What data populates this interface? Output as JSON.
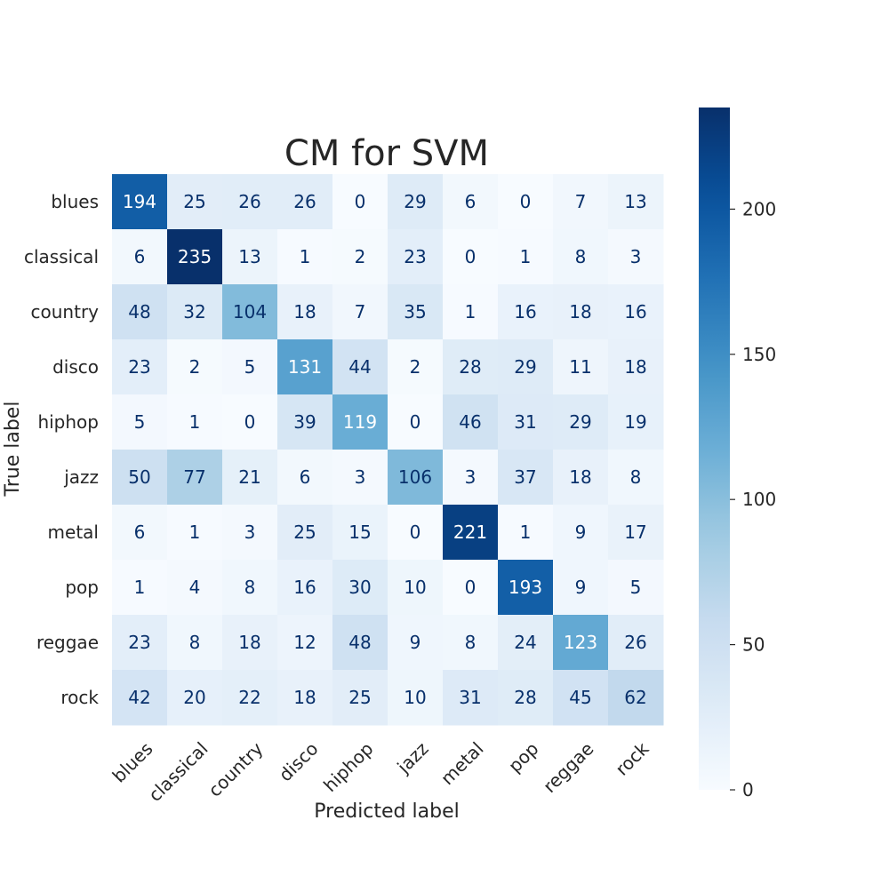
{
  "chart_data": {
    "type": "heatmap",
    "title": "CM for SVM",
    "xlabel": "Predicted label",
    "ylabel": "True label",
    "x_categories": [
      "blues",
      "classical",
      "country",
      "disco",
      "hiphop",
      "jazz",
      "metal",
      "pop",
      "reggae",
      "rock"
    ],
    "y_categories": [
      "blues",
      "classical",
      "country",
      "disco",
      "hiphop",
      "jazz",
      "metal",
      "pop",
      "reggae",
      "rock"
    ],
    "values": [
      [
        194,
        25,
        26,
        26,
        0,
        29,
        6,
        0,
        7,
        13
      ],
      [
        6,
        235,
        13,
        1,
        2,
        23,
        0,
        1,
        8,
        3
      ],
      [
        48,
        32,
        104,
        18,
        7,
        35,
        1,
        16,
        18,
        16
      ],
      [
        23,
        2,
        5,
        131,
        44,
        2,
        28,
        29,
        11,
        18
      ],
      [
        5,
        1,
        0,
        39,
        119,
        0,
        46,
        31,
        29,
        19
      ],
      [
        50,
        77,
        21,
        6,
        3,
        106,
        3,
        37,
        18,
        8
      ],
      [
        6,
        1,
        3,
        25,
        15,
        0,
        221,
        1,
        9,
        17
      ],
      [
        1,
        4,
        8,
        16,
        30,
        10,
        0,
        193,
        9,
        5
      ],
      [
        23,
        8,
        18,
        12,
        48,
        9,
        8,
        24,
        123,
        26
      ],
      [
        42,
        20,
        22,
        18,
        25,
        10,
        31,
        28,
        45,
        62
      ]
    ],
    "colormap": "Blues",
    "colors": {
      "low": "#f7fbff",
      "high": "#08306b",
      "text_dark": "#08306b",
      "text_light": "#ffffff",
      "label": "#262626"
    },
    "colorbar": {
      "range": [
        0,
        235
      ],
      "ticks": [
        0,
        50,
        100,
        150,
        200
      ]
    },
    "x_tick_rotation_deg": 45,
    "grid": false
  }
}
